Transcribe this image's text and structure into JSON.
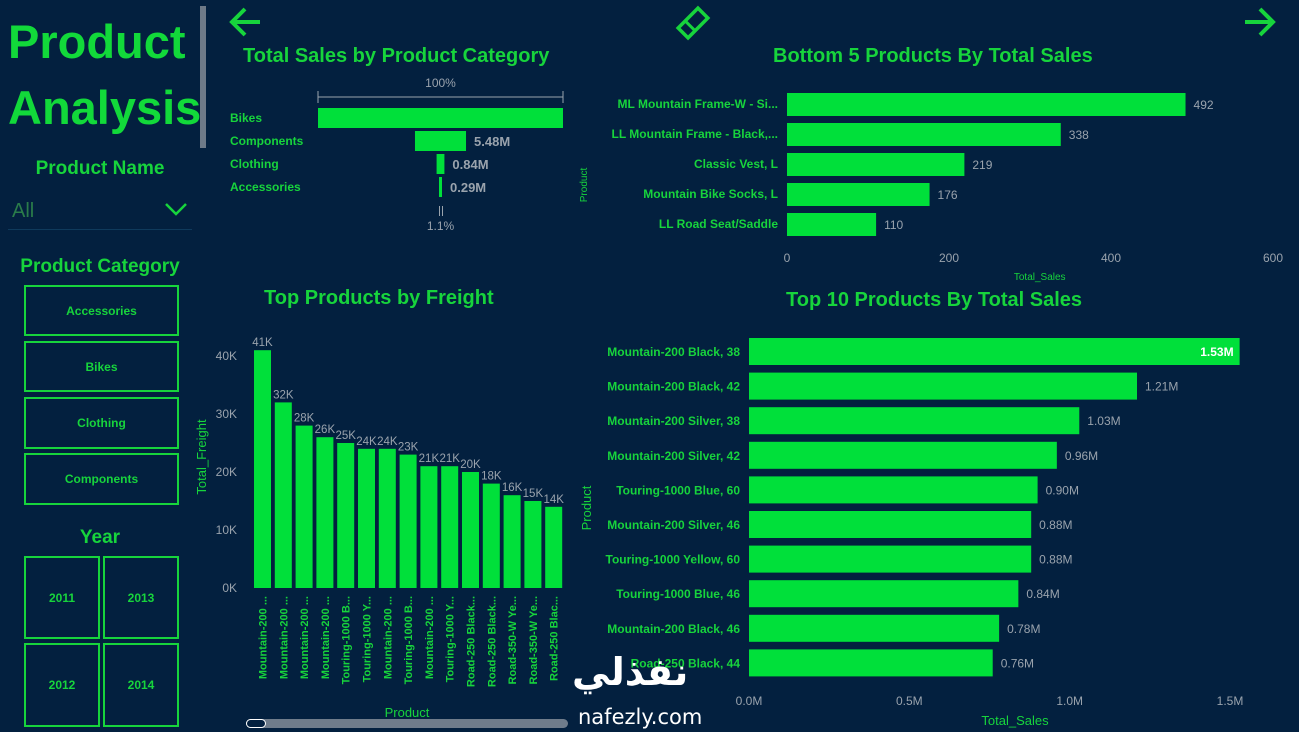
{
  "page": {
    "title_line1": "Product",
    "title_line2": "Analysis"
  },
  "nav": {
    "back_icon": "arrow-left-icon",
    "eraser_icon": "eraser-icon",
    "forward_icon": "arrow-right-icon"
  },
  "slicers": {
    "product_name": {
      "label": "Product Name",
      "value": "All"
    },
    "product_category": {
      "label": "Product Category",
      "options": [
        "Accessories",
        "Bikes",
        "Clothing",
        "Components"
      ]
    },
    "year": {
      "label": "Year",
      "options": [
        "2011",
        "2013",
        "2012",
        "2014"
      ]
    }
  },
  "colors": {
    "background": "#03203f",
    "accent": "#17d43c",
    "bar": "#00e03a",
    "muted": "#9aa3ad"
  },
  "watermark": {
    "arabic": "نفذلي",
    "latin": "nafezly.com"
  },
  "chart_data": [
    {
      "id": "funnel",
      "type": "bar",
      "title": "Total Sales by Product Category",
      "top_label": "100%",
      "bottom_label": "1.1%",
      "categories": [
        "Bikes",
        "Components",
        "Clothing",
        "Accessories"
      ],
      "values": [
        26.3,
        5.48,
        0.84,
        0.29
      ],
      "value_labels": [
        "",
        "5.48M",
        "0.84M",
        "0.29M"
      ]
    },
    {
      "id": "bottom5",
      "type": "bar",
      "title": "Bottom 5 Products By Total Sales",
      "ylabel": "Product",
      "xlabel": "Total_Sales",
      "categories": [
        "ML Mountain Frame-W - Si...",
        "LL Mountain Frame - Black,...",
        "Classic Vest, L",
        "Mountain Bike Socks, L",
        "LL Road Seat/Saddle"
      ],
      "values": [
        492,
        338,
        219,
        176,
        110
      ],
      "value_labels": [
        "492",
        "338",
        "219",
        "176",
        "110"
      ],
      "xlim": [
        0,
        600
      ],
      "ticks": [
        "0",
        "200",
        "400",
        "600"
      ]
    },
    {
      "id": "freight",
      "type": "bar",
      "title": "Top Products by Freight",
      "ylabel": "Total_Freight",
      "xlabel": "Product",
      "categories": [
        "Mountain-200 ...",
        "Mountain-200 ...",
        "Mountain-200 ...",
        "Mountain-200 ...",
        "Touring-1000 B...",
        "Touring-1000 Y...",
        "Mountain-200 ...",
        "Touring-1000 B...",
        "Mountain-200 ...",
        "Touring-1000 Y...",
        "Road-250 Black...",
        "Road-250 Black...",
        "Road-350-W Ye...",
        "Road-350-W Ye...",
        "Road-250 Blac..."
      ],
      "values": [
        41,
        32,
        28,
        26,
        25,
        24,
        24,
        23,
        21,
        21,
        20,
        18,
        16,
        15,
        14
      ],
      "value_labels": [
        "41K",
        "32K",
        "28K",
        "26K",
        "25K",
        "24K",
        "24K",
        "23K",
        "21K",
        "21K",
        "20K",
        "18K",
        "16K",
        "15K",
        "14K"
      ],
      "ylim": [
        0,
        40
      ],
      "ticks": [
        "0K",
        "10K",
        "20K",
        "30K",
        "40K"
      ]
    },
    {
      "id": "top10",
      "type": "bar",
      "title": "Top 10 Products By Total Sales",
      "ylabel": "Product",
      "xlabel": "Total_Sales",
      "categories": [
        "Mountain-200 Black, 38",
        "Mountain-200 Black, 42",
        "Mountain-200 Silver, 38",
        "Mountain-200 Silver, 42",
        "Touring-1000 Blue, 60",
        "Mountain-200 Silver, 46",
        "Touring-1000 Yellow, 60",
        "Touring-1000 Blue, 46",
        "Mountain-200 Black, 46",
        "Road-250 Black, 44"
      ],
      "values": [
        1.53,
        1.21,
        1.03,
        0.96,
        0.9,
        0.88,
        0.88,
        0.84,
        0.78,
        0.76
      ],
      "value_labels": [
        "1.53M",
        "1.21M",
        "1.03M",
        "0.96M",
        "0.90M",
        "0.88M",
        "0.88M",
        "0.84M",
        "0.78M",
        "0.76M"
      ],
      "xlim": [
        0,
        1.5
      ],
      "ticks": [
        "0.0M",
        "0.5M",
        "1.0M",
        "1.5M"
      ]
    }
  ]
}
